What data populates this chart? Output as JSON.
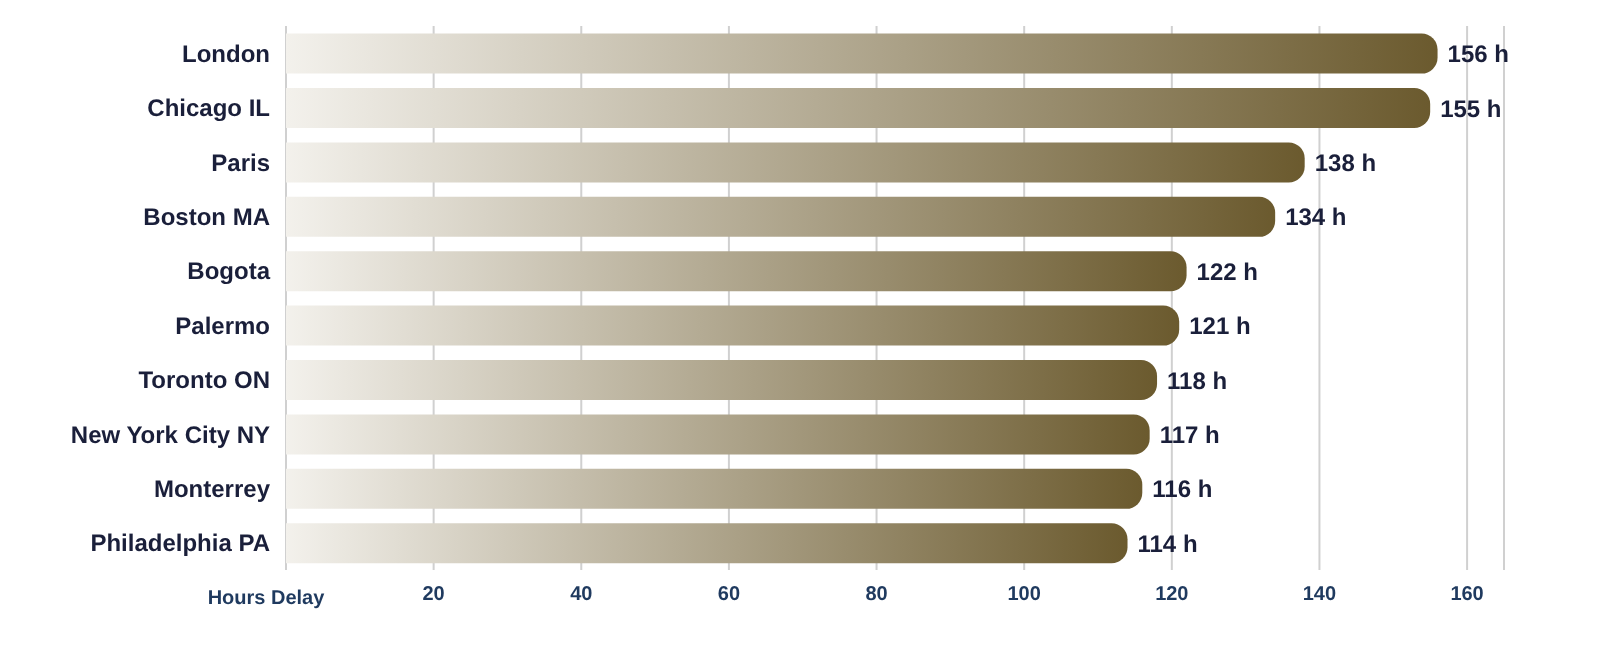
{
  "chart_data": {
    "type": "bar",
    "orientation": "horizontal",
    "xlabel": "Hours Delay",
    "categories": [
      "London",
      "Chicago IL",
      "Paris",
      "Boston MA",
      "Bogota",
      "Palermo",
      "Toronto ON",
      "New York City NY",
      "Monterrey",
      "Philadelphia PA"
    ],
    "values": [
      156,
      155,
      138,
      134,
      122,
      121,
      118,
      117,
      116,
      114
    ],
    "value_labels": [
      "156 h",
      "155 h",
      "138 h",
      "134 h",
      "122 h",
      "121 h",
      "118 h",
      "117 h",
      "116 h",
      "114 h"
    ],
    "color": "#6b5a2e",
    "xlim": [
      0,
      165
    ],
    "xticks": [
      20,
      40,
      60,
      80,
      100,
      120,
      140,
      160
    ],
    "grid": "x",
    "legend": false
  }
}
